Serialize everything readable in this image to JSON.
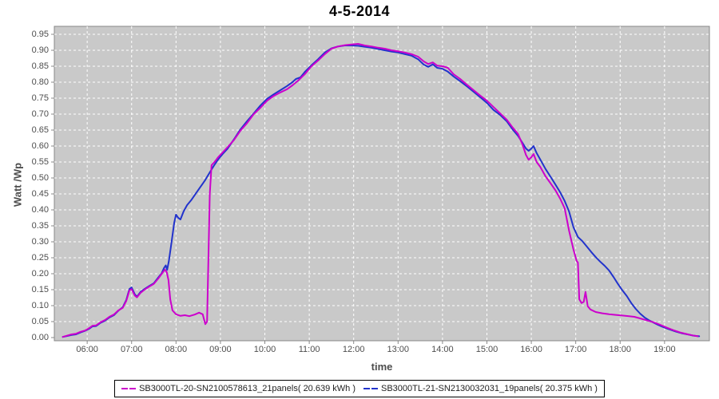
{
  "title": "4-5-2014",
  "axes": {
    "y_label": "Watt /Wp",
    "x_label": "time"
  },
  "legend": {
    "items": [
      {
        "label": "SB3000TL-20-SN2100578613_21panels( 20.639 kWh )",
        "color": "#CC00CC"
      },
      {
        "label": "SB3000TL-21-SN2130032031_19panels( 20.375 kWh )",
        "color": "#2233CC"
      }
    ]
  },
  "chart_data": {
    "type": "line",
    "title": "4-5-2014",
    "xlabel": "time",
    "ylabel": "Watt /Wp",
    "xlim_hours": [
      5.26,
      20.01
    ],
    "ylim": [
      -0.01,
      0.975
    ],
    "grid": true,
    "legend_position": "bottom",
    "plot_bg": "#C9C9C9",
    "grid_color": "#FFFFFF",
    "axis_color": "#888888",
    "x_ticks": [
      "06:00",
      "07:00",
      "08:00",
      "09:00",
      "10:00",
      "11:00",
      "12:00",
      "13:00",
      "14:00",
      "15:00",
      "16:00",
      "17:00",
      "18:00",
      "19:00"
    ],
    "x_tick_hours": [
      6,
      7,
      8,
      9,
      10,
      11,
      12,
      13,
      14,
      15,
      16,
      17,
      18,
      19
    ],
    "y_ticks": [
      "0.00",
      "0.05",
      "0.10",
      "0.15",
      "0.20",
      "0.25",
      "0.30",
      "0.35",
      "0.40",
      "0.45",
      "0.50",
      "0.55",
      "0.60",
      "0.65",
      "0.70",
      "0.75",
      "0.80",
      "0.85",
      "0.90",
      "0.95"
    ],
    "y_tick_values": [
      0,
      0.05,
      0.1,
      0.15,
      0.2,
      0.25,
      0.3,
      0.35,
      0.4,
      0.45,
      0.5,
      0.55,
      0.6,
      0.65,
      0.7,
      0.75,
      0.8,
      0.85,
      0.9,
      0.95
    ],
    "series": [
      {
        "name": "SB3000TL-21-SN2130032031_19panels( 20.375 kWh )",
        "color": "#2233CC",
        "points_time_value": [
          [
            5.45,
            0.002
          ],
          [
            5.55,
            0.005
          ],
          [
            5.65,
            0.008
          ],
          [
            5.75,
            0.01
          ],
          [
            5.85,
            0.016
          ],
          [
            5.95,
            0.021
          ],
          [
            6.05,
            0.028
          ],
          [
            6.12,
            0.035
          ],
          [
            6.2,
            0.036
          ],
          [
            6.3,
            0.046
          ],
          [
            6.4,
            0.053
          ],
          [
            6.5,
            0.063
          ],
          [
            6.6,
            0.07
          ],
          [
            6.7,
            0.084
          ],
          [
            6.8,
            0.095
          ],
          [
            6.88,
            0.118
          ],
          [
            6.95,
            0.152
          ],
          [
            7.0,
            0.157
          ],
          [
            7.07,
            0.136
          ],
          [
            7.12,
            0.128
          ],
          [
            7.2,
            0.143
          ],
          [
            7.3,
            0.153
          ],
          [
            7.4,
            0.162
          ],
          [
            7.5,
            0.17
          ],
          [
            7.6,
            0.188
          ],
          [
            7.68,
            0.202
          ],
          [
            7.73,
            0.218
          ],
          [
            7.77,
            0.226
          ],
          [
            7.8,
            0.212
          ],
          [
            7.84,
            0.24
          ],
          [
            7.9,
            0.3
          ],
          [
            7.96,
            0.36
          ],
          [
            8.0,
            0.385
          ],
          [
            8.05,
            0.375
          ],
          [
            8.1,
            0.37
          ],
          [
            8.17,
            0.395
          ],
          [
            8.25,
            0.415
          ],
          [
            8.35,
            0.432
          ],
          [
            8.45,
            0.452
          ],
          [
            8.55,
            0.472
          ],
          [
            8.65,
            0.492
          ],
          [
            8.75,
            0.515
          ],
          [
            8.85,
            0.538
          ],
          [
            8.95,
            0.558
          ],
          [
            9.05,
            0.575
          ],
          [
            9.15,
            0.59
          ],
          [
            9.3,
            0.62
          ],
          [
            9.45,
            0.652
          ],
          [
            9.6,
            0.678
          ],
          [
            9.75,
            0.702
          ],
          [
            9.9,
            0.727
          ],
          [
            10.05,
            0.748
          ],
          [
            10.2,
            0.762
          ],
          [
            10.35,
            0.775
          ],
          [
            10.5,
            0.788
          ],
          [
            10.62,
            0.8
          ],
          [
            10.7,
            0.81
          ],
          [
            10.8,
            0.815
          ],
          [
            10.9,
            0.832
          ],
          [
            11.05,
            0.853
          ],
          [
            11.2,
            0.872
          ],
          [
            11.35,
            0.893
          ],
          [
            11.5,
            0.906
          ],
          [
            11.65,
            0.912
          ],
          [
            11.8,
            0.915
          ],
          [
            11.95,
            0.915
          ],
          [
            12.1,
            0.914
          ],
          [
            12.25,
            0.911
          ],
          [
            12.4,
            0.908
          ],
          [
            12.55,
            0.904
          ],
          [
            12.7,
            0.9
          ],
          [
            12.85,
            0.896
          ],
          [
            13.0,
            0.893
          ],
          [
            13.15,
            0.888
          ],
          [
            13.3,
            0.883
          ],
          [
            13.45,
            0.872
          ],
          [
            13.58,
            0.855
          ],
          [
            13.68,
            0.848
          ],
          [
            13.78,
            0.856
          ],
          [
            13.88,
            0.845
          ],
          [
            14.0,
            0.842
          ],
          [
            14.12,
            0.833
          ],
          [
            14.25,
            0.818
          ],
          [
            14.4,
            0.803
          ],
          [
            14.55,
            0.787
          ],
          [
            14.7,
            0.77
          ],
          [
            14.85,
            0.753
          ],
          [
            15.0,
            0.735
          ],
          [
            15.15,
            0.713
          ],
          [
            15.3,
            0.697
          ],
          [
            15.45,
            0.677
          ],
          [
            15.58,
            0.652
          ],
          [
            15.7,
            0.632
          ],
          [
            15.8,
            0.61
          ],
          [
            15.88,
            0.592
          ],
          [
            15.94,
            0.585
          ],
          [
            16.0,
            0.592
          ],
          [
            16.05,
            0.6
          ],
          [
            16.12,
            0.578
          ],
          [
            16.2,
            0.558
          ],
          [
            16.32,
            0.528
          ],
          [
            16.45,
            0.5
          ],
          [
            16.55,
            0.478
          ],
          [
            16.65,
            0.455
          ],
          [
            16.75,
            0.428
          ],
          [
            16.85,
            0.395
          ],
          [
            16.95,
            0.345
          ],
          [
            17.05,
            0.315
          ],
          [
            17.15,
            0.302
          ],
          [
            17.25,
            0.285
          ],
          [
            17.35,
            0.268
          ],
          [
            17.45,
            0.252
          ],
          [
            17.55,
            0.238
          ],
          [
            17.65,
            0.225
          ],
          [
            17.75,
            0.21
          ],
          [
            17.85,
            0.19
          ],
          [
            17.95,
            0.168
          ],
          [
            18.05,
            0.148
          ],
          [
            18.15,
            0.13
          ],
          [
            18.25,
            0.108
          ],
          [
            18.35,
            0.09
          ],
          [
            18.45,
            0.075
          ],
          [
            18.55,
            0.063
          ],
          [
            18.65,
            0.054
          ],
          [
            18.75,
            0.047
          ],
          [
            18.85,
            0.04
          ],
          [
            18.95,
            0.034
          ],
          [
            19.1,
            0.026
          ],
          [
            19.25,
            0.019
          ],
          [
            19.4,
            0.013
          ],
          [
            19.55,
            0.009
          ],
          [
            19.65,
            0.006
          ],
          [
            19.78,
            0.004
          ]
        ]
      },
      {
        "name": "SB3000TL-20-SN2100578613_21panels( 20.639 kWh )",
        "color": "#CC00CC",
        "points_time_value": [
          [
            5.45,
            0.002
          ],
          [
            5.55,
            0.006
          ],
          [
            5.65,
            0.01
          ],
          [
            5.75,
            0.012
          ],
          [
            5.85,
            0.018
          ],
          [
            5.95,
            0.022
          ],
          [
            6.05,
            0.03
          ],
          [
            6.12,
            0.037
          ],
          [
            6.2,
            0.038
          ],
          [
            6.3,
            0.048
          ],
          [
            6.4,
            0.055
          ],
          [
            6.5,
            0.065
          ],
          [
            6.6,
            0.072
          ],
          [
            6.7,
            0.085
          ],
          [
            6.8,
            0.093
          ],
          [
            6.88,
            0.115
          ],
          [
            6.95,
            0.148
          ],
          [
            7.0,
            0.152
          ],
          [
            7.07,
            0.132
          ],
          [
            7.12,
            0.126
          ],
          [
            7.2,
            0.14
          ],
          [
            7.3,
            0.151
          ],
          [
            7.4,
            0.16
          ],
          [
            7.5,
            0.168
          ],
          [
            7.6,
            0.185
          ],
          [
            7.68,
            0.2
          ],
          [
            7.75,
            0.213
          ],
          [
            7.79,
            0.205
          ],
          [
            7.83,
            0.18
          ],
          [
            7.87,
            0.12
          ],
          [
            7.92,
            0.085
          ],
          [
            8.0,
            0.073
          ],
          [
            8.1,
            0.068
          ],
          [
            8.2,
            0.07
          ],
          [
            8.3,
            0.067
          ],
          [
            8.42,
            0.072
          ],
          [
            8.52,
            0.078
          ],
          [
            8.6,
            0.073
          ],
          [
            8.66,
            0.042
          ],
          [
            8.7,
            0.05
          ],
          [
            8.73,
            0.25
          ],
          [
            8.76,
            0.45
          ],
          [
            8.8,
            0.54
          ],
          [
            8.88,
            0.552
          ],
          [
            8.95,
            0.565
          ],
          [
            9.05,
            0.58
          ],
          [
            9.15,
            0.595
          ],
          [
            9.3,
            0.618
          ],
          [
            9.45,
            0.648
          ],
          [
            9.6,
            0.672
          ],
          [
            9.75,
            0.7
          ],
          [
            9.9,
            0.72
          ],
          [
            10.05,
            0.742
          ],
          [
            10.2,
            0.757
          ],
          [
            10.35,
            0.768
          ],
          [
            10.5,
            0.778
          ],
          [
            10.62,
            0.79
          ],
          [
            10.75,
            0.805
          ],
          [
            10.9,
            0.825
          ],
          [
            11.05,
            0.85
          ],
          [
            11.2,
            0.868
          ],
          [
            11.35,
            0.888
          ],
          [
            11.5,
            0.905
          ],
          [
            11.65,
            0.912
          ],
          [
            11.8,
            0.916
          ],
          [
            11.95,
            0.918
          ],
          [
            12.1,
            0.92
          ],
          [
            12.25,
            0.915
          ],
          [
            12.4,
            0.912
          ],
          [
            12.55,
            0.908
          ],
          [
            12.7,
            0.905
          ],
          [
            12.85,
            0.9
          ],
          [
            13.0,
            0.897
          ],
          [
            13.15,
            0.893
          ],
          [
            13.3,
            0.888
          ],
          [
            13.45,
            0.88
          ],
          [
            13.58,
            0.865
          ],
          [
            13.68,
            0.857
          ],
          [
            13.78,
            0.862
          ],
          [
            13.88,
            0.852
          ],
          [
            14.0,
            0.85
          ],
          [
            14.12,
            0.845
          ],
          [
            14.25,
            0.825
          ],
          [
            14.4,
            0.81
          ],
          [
            14.55,
            0.792
          ],
          [
            14.7,
            0.775
          ],
          [
            14.85,
            0.758
          ],
          [
            15.0,
            0.742
          ],
          [
            15.15,
            0.722
          ],
          [
            15.3,
            0.702
          ],
          [
            15.45,
            0.682
          ],
          [
            15.58,
            0.658
          ],
          [
            15.7,
            0.638
          ],
          [
            15.8,
            0.605
          ],
          [
            15.88,
            0.572
          ],
          [
            15.94,
            0.557
          ],
          [
            16.0,
            0.565
          ],
          [
            16.05,
            0.575
          ],
          [
            16.12,
            0.55
          ],
          [
            16.2,
            0.535
          ],
          [
            16.32,
            0.505
          ],
          [
            16.45,
            0.48
          ],
          [
            16.55,
            0.46
          ],
          [
            16.65,
            0.435
          ],
          [
            16.75,
            0.405
          ],
          [
            16.85,
            0.335
          ],
          [
            16.95,
            0.275
          ],
          [
            17.02,
            0.24
          ],
          [
            17.05,
            0.235
          ],
          [
            17.08,
            0.12
          ],
          [
            17.13,
            0.108
          ],
          [
            17.18,
            0.112
          ],
          [
            17.22,
            0.143
          ],
          [
            17.27,
            0.098
          ],
          [
            17.33,
            0.088
          ],
          [
            17.45,
            0.08
          ],
          [
            17.6,
            0.076
          ],
          [
            17.75,
            0.073
          ],
          [
            17.9,
            0.071
          ],
          [
            18.05,
            0.069
          ],
          [
            18.2,
            0.067
          ],
          [
            18.32,
            0.065
          ],
          [
            18.45,
            0.06
          ],
          [
            18.6,
            0.054
          ],
          [
            18.75,
            0.048
          ],
          [
            18.9,
            0.04
          ],
          [
            19.05,
            0.031
          ],
          [
            19.2,
            0.023
          ],
          [
            19.35,
            0.016
          ],
          [
            19.5,
            0.011
          ],
          [
            19.62,
            0.007
          ],
          [
            19.75,
            0.004
          ]
        ]
      }
    ]
  }
}
